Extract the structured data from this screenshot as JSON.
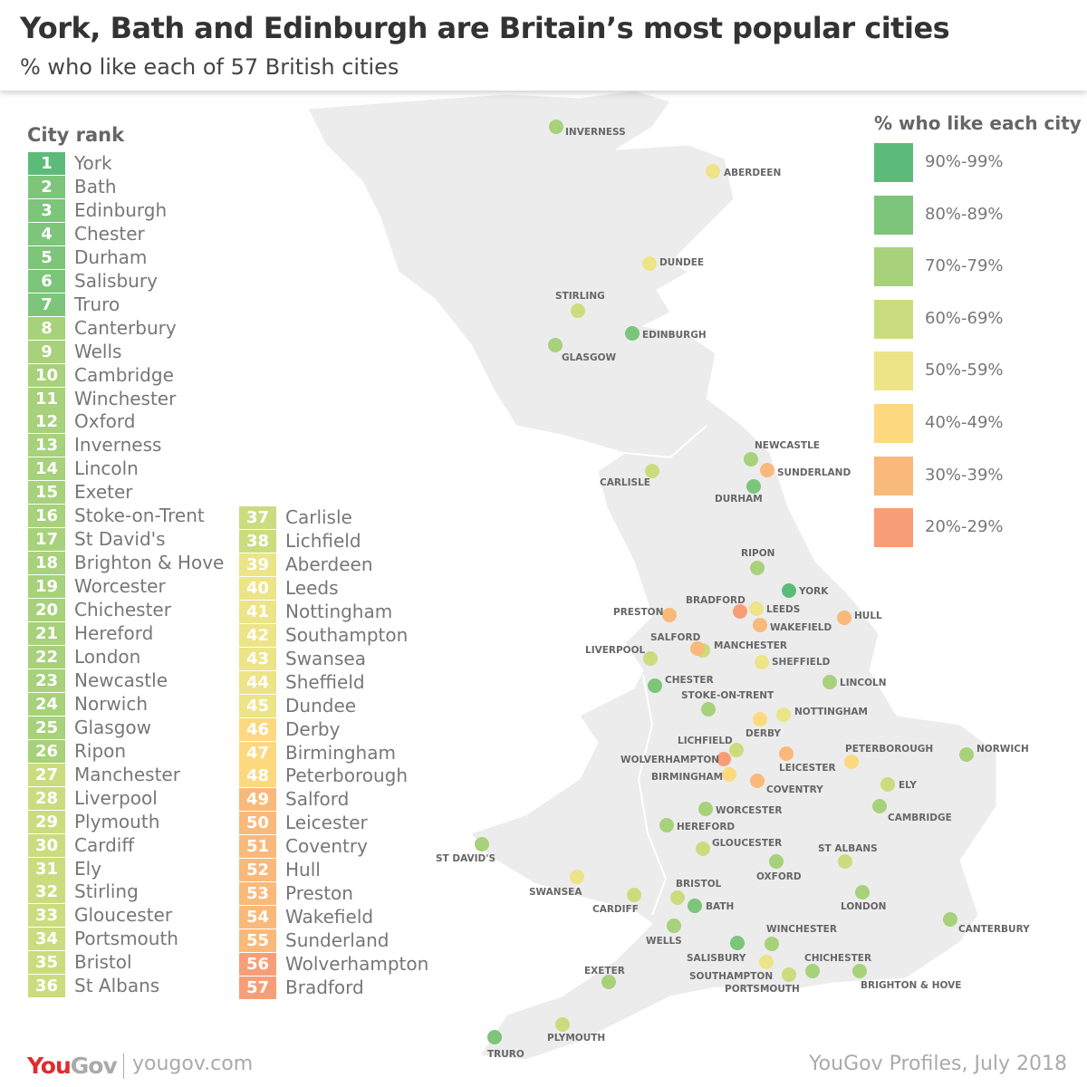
{
  "header": {
    "title": "York, Bath and Edinburgh are Britain’s most popular cities",
    "subtitle": "% who like each of 57 British cities"
  },
  "rank_list": {
    "heading": "City rank"
  },
  "legend": {
    "title": "% who like each city",
    "bands": [
      {
        "label": "90%-99%",
        "color": "#5dbb7a"
      },
      {
        "label": "80%-89%",
        "color": "#7cc57a"
      },
      {
        "label": "70%-79%",
        "color": "#a7d17a"
      },
      {
        "label": "60%-69%",
        "color": "#cbdc7f"
      },
      {
        "label": "50%-59%",
        "color": "#ece486"
      },
      {
        "label": "40%-49%",
        "color": "#fcd97f"
      },
      {
        "label": "30%-39%",
        "color": "#f9b97a"
      },
      {
        "label": "20%-29%",
        "color": "#f79e77"
      }
    ]
  },
  "cities": [
    {
      "rank": "1",
      "name": "York",
      "map_label": "YORK",
      "band": 0
    },
    {
      "rank": "2",
      "name": "Bath",
      "map_label": "BATH",
      "band": 1
    },
    {
      "rank": "3",
      "name": "Edinburgh",
      "map_label": "EDINBURGH",
      "band": 1
    },
    {
      "rank": "4",
      "name": "Chester",
      "map_label": "CHESTER",
      "band": 1
    },
    {
      "rank": "5",
      "name": "Durham",
      "map_label": "DURHAM",
      "band": 1
    },
    {
      "rank": "6",
      "name": "Salisbury",
      "map_label": "SALISBURY",
      "band": 1
    },
    {
      "rank": "7",
      "name": "Truro",
      "map_label": "TRURO",
      "band": 1
    },
    {
      "rank": "8",
      "name": "Canterbury",
      "map_label": "CANTERBURY",
      "band": 2
    },
    {
      "rank": "9",
      "name": "Wells",
      "map_label": "WELLS",
      "band": 2
    },
    {
      "rank": "10",
      "name": "Cambridge",
      "map_label": "CAMBRIDGE",
      "band": 2
    },
    {
      "rank": "11",
      "name": "Winchester",
      "map_label": "WINCHESTER",
      "band": 2
    },
    {
      "rank": "12",
      "name": "Oxford",
      "map_label": "OXFORD",
      "band": 2
    },
    {
      "rank": "13",
      "name": "Inverness",
      "map_label": "INVERNESS",
      "band": 2
    },
    {
      "rank": "14",
      "name": "Lincoln",
      "map_label": "LINCOLN",
      "band": 2
    },
    {
      "rank": "15",
      "name": "Exeter",
      "map_label": "EXETER",
      "band": 2
    },
    {
      "rank": "16",
      "name": "Stoke-on-Trent",
      "map_label": "STOKE-ON-TRENT",
      "band": 2
    },
    {
      "rank": "17",
      "name": "St David's",
      "map_label": "ST DAVID'S",
      "band": 2
    },
    {
      "rank": "18",
      "name": "Brighton & Hove",
      "map_label": "BRIGHTON & HOVE",
      "band": 2
    },
    {
      "rank": "19",
      "name": "Worcester",
      "map_label": "WORCESTER",
      "band": 2
    },
    {
      "rank": "20",
      "name": "Chichester",
      "map_label": "CHICHESTER",
      "band": 2
    },
    {
      "rank": "21",
      "name": "Hereford",
      "map_label": "HEREFORD",
      "band": 2
    },
    {
      "rank": "22",
      "name": "London",
      "map_label": "LONDON",
      "band": 2
    },
    {
      "rank": "23",
      "name": "Newcastle",
      "map_label": "NEWCASTLE",
      "band": 2
    },
    {
      "rank": "24",
      "name": "Norwich",
      "map_label": "NORWICH",
      "band": 2
    },
    {
      "rank": "25",
      "name": "Glasgow",
      "map_label": "GLASGOW",
      "band": 2
    },
    {
      "rank": "26",
      "name": "Ripon",
      "map_label": "RIPON",
      "band": 2
    },
    {
      "rank": "27",
      "name": "Manchester",
      "map_label": "MANCHESTER",
      "band": 3
    },
    {
      "rank": "28",
      "name": "Liverpool",
      "map_label": "LIVERPOOL",
      "band": 3
    },
    {
      "rank": "29",
      "name": "Plymouth",
      "map_label": "PLYMOUTH",
      "band": 3
    },
    {
      "rank": "30",
      "name": "Cardiff",
      "map_label": "CARDIFF",
      "band": 3
    },
    {
      "rank": "31",
      "name": "Ely",
      "map_label": "ELY",
      "band": 3
    },
    {
      "rank": "32",
      "name": "Stirling",
      "map_label": "STIRLING",
      "band": 3
    },
    {
      "rank": "33",
      "name": "Gloucester",
      "map_label": "GLOUCESTER",
      "band": 3
    },
    {
      "rank": "34",
      "name": "Portsmouth",
      "map_label": "PORTSMOUTH",
      "band": 3
    },
    {
      "rank": "35",
      "name": "Bristol",
      "map_label": "BRISTOL",
      "band": 3
    },
    {
      "rank": "36",
      "name": "St Albans",
      "map_label": "ST ALBANS",
      "band": 3
    },
    {
      "rank": "37",
      "name": "Carlisle",
      "map_label": "CARLISLE",
      "band": 3
    },
    {
      "rank": "38",
      "name": "Lichfield",
      "map_label": "LICHFIELD",
      "band": 3
    },
    {
      "rank": "39",
      "name": "Aberdeen",
      "map_label": "ABERDEEN",
      "band": 4
    },
    {
      "rank": "40",
      "name": "Leeds",
      "map_label": "LEEDS",
      "band": 4
    },
    {
      "rank": "41",
      "name": "Nottingham",
      "map_label": "NOTTINGHAM",
      "band": 4
    },
    {
      "rank": "42",
      "name": "Southampton",
      "map_label": "SOUTHAMPTON",
      "band": 4
    },
    {
      "rank": "43",
      "name": "Swansea",
      "map_label": "SWANSEA",
      "band": 4
    },
    {
      "rank": "44",
      "name": "Sheffield",
      "map_label": "SHEFFIELD",
      "band": 4
    },
    {
      "rank": "45",
      "name": "Dundee",
      "map_label": "DUNDEE",
      "band": 4
    },
    {
      "rank": "46",
      "name": "Derby",
      "map_label": "DERBY",
      "band": 5
    },
    {
      "rank": "47",
      "name": "Birmingham",
      "map_label": "BIRMINGHAM",
      "band": 5
    },
    {
      "rank": "48",
      "name": "Peterborough",
      "map_label": "PETERBOROUGH",
      "band": 5
    },
    {
      "rank": "49",
      "name": "Salford",
      "map_label": "SALFORD",
      "band": 6
    },
    {
      "rank": "50",
      "name": "Leicester",
      "map_label": "LEICESTER",
      "band": 6
    },
    {
      "rank": "51",
      "name": "Coventry",
      "map_label": "COVENTRY",
      "band": 6
    },
    {
      "rank": "52",
      "name": "Hull",
      "map_label": "HULL",
      "band": 6
    },
    {
      "rank": "53",
      "name": "Preston",
      "map_label": "PRESTON",
      "band": 6
    },
    {
      "rank": "54",
      "name": "Wakefield",
      "map_label": "WAKEFIELD",
      "band": 6
    },
    {
      "rank": "55",
      "name": "Sunderland",
      "map_label": "SUNDERLAND",
      "band": 6
    },
    {
      "rank": "56",
      "name": "Wolverhampton",
      "map_label": "WOLVERHAMPTON",
      "band": 7
    },
    {
      "rank": "57",
      "name": "Bradford",
      "map_label": "BRADFORD",
      "band": 7
    }
  ],
  "footer": {
    "logo_you": "You",
    "logo_gov": "Gov",
    "url": "yougov.com",
    "source": "YouGov Profiles, July 2018"
  }
}
